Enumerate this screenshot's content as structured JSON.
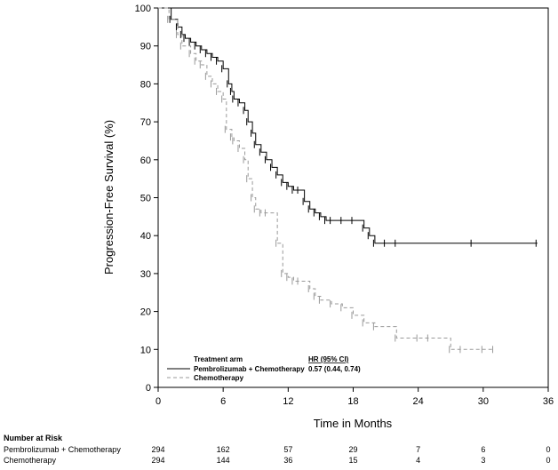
{
  "chart_data": {
    "type": "line",
    "xlabel": "Time in Months",
    "ylabel": "Progression-Free Survival (%)",
    "xlim": [
      0,
      36
    ],
    "ylim": [
      0,
      100
    ],
    "x_ticks": [
      0,
      6,
      12,
      18,
      24,
      30,
      36
    ],
    "y_ticks": [
      0,
      10,
      20,
      30,
      40,
      50,
      60,
      70,
      80,
      90,
      100
    ],
    "legend": {
      "header": "Treatment arm",
      "hr_header": "HR (95% CI)",
      "hr_value": "0.57 (0.44, 0.74)"
    },
    "series": [
      {
        "name": "Pembrolizumab + Chemotherapy",
        "style": "solid",
        "color": "#000000",
        "x": [
          0,
          1.2,
          1.8,
          2.2,
          2.5,
          3.0,
          3.5,
          4.0,
          4.5,
          5.0,
          5.5,
          6.0,
          6.5,
          6.8,
          7.0,
          7.5,
          8.0,
          8.3,
          8.7,
          9.0,
          9.5,
          10.0,
          10.5,
          11.0,
          11.5,
          12.0,
          12.5,
          13.0,
          13.5,
          14.0,
          14.5,
          15.0,
          15.5,
          16.0,
          17.0,
          18.0,
          19.0,
          19.5,
          20.0,
          21.0,
          22.0,
          29.0,
          35.0
        ],
        "y": [
          100,
          97,
          95,
          93,
          92,
          91,
          90,
          89,
          88,
          87,
          86,
          84,
          80,
          78,
          76,
          75,
          73,
          70,
          67,
          64,
          62,
          60,
          58,
          56,
          54,
          53,
          52,
          52,
          49,
          47,
          46,
          45,
          44,
          44,
          44,
          44,
          42,
          40,
          38,
          38,
          38,
          38,
          38
        ]
      },
      {
        "name": "Chemotherapy",
        "style": "dashed",
        "color": "#999999",
        "x": [
          0,
          1.0,
          1.8,
          2.2,
          3.0,
          3.5,
          4.0,
          4.5,
          5.0,
          5.5,
          6.0,
          6.3,
          6.8,
          7.0,
          7.5,
          8.0,
          8.3,
          8.7,
          9.0,
          9.5,
          10.0,
          11.0,
          11.5,
          12.0,
          12.5,
          13.0,
          14.0,
          14.5,
          15.0,
          16.0,
          17.0,
          18.0,
          19.0,
          20.0,
          22.0,
          24.0,
          25.0,
          27.0,
          28.0,
          30.0,
          31.0
        ],
        "y": [
          100,
          97,
          93,
          90,
          88,
          86,
          85,
          82,
          80,
          78,
          76,
          68,
          66,
          65,
          63,
          60,
          55,
          50,
          47,
          46,
          46,
          38,
          30,
          29,
          28,
          28,
          26,
          24,
          23,
          22,
          21,
          19,
          17,
          16,
          13,
          13,
          13,
          10,
          10,
          10,
          10
        ]
      }
    ]
  },
  "risk_table": {
    "title": "Number at Risk",
    "rows": [
      {
        "label": "Pembrolizumab + Chemotherapy",
        "values": [
          "294",
          "162",
          "57",
          "29",
          "7",
          "6",
          "0"
        ]
      },
      {
        "label": "Chemotherapy",
        "values": [
          "294",
          "144",
          "36",
          "15",
          "4",
          "3",
          "0"
        ]
      }
    ]
  }
}
